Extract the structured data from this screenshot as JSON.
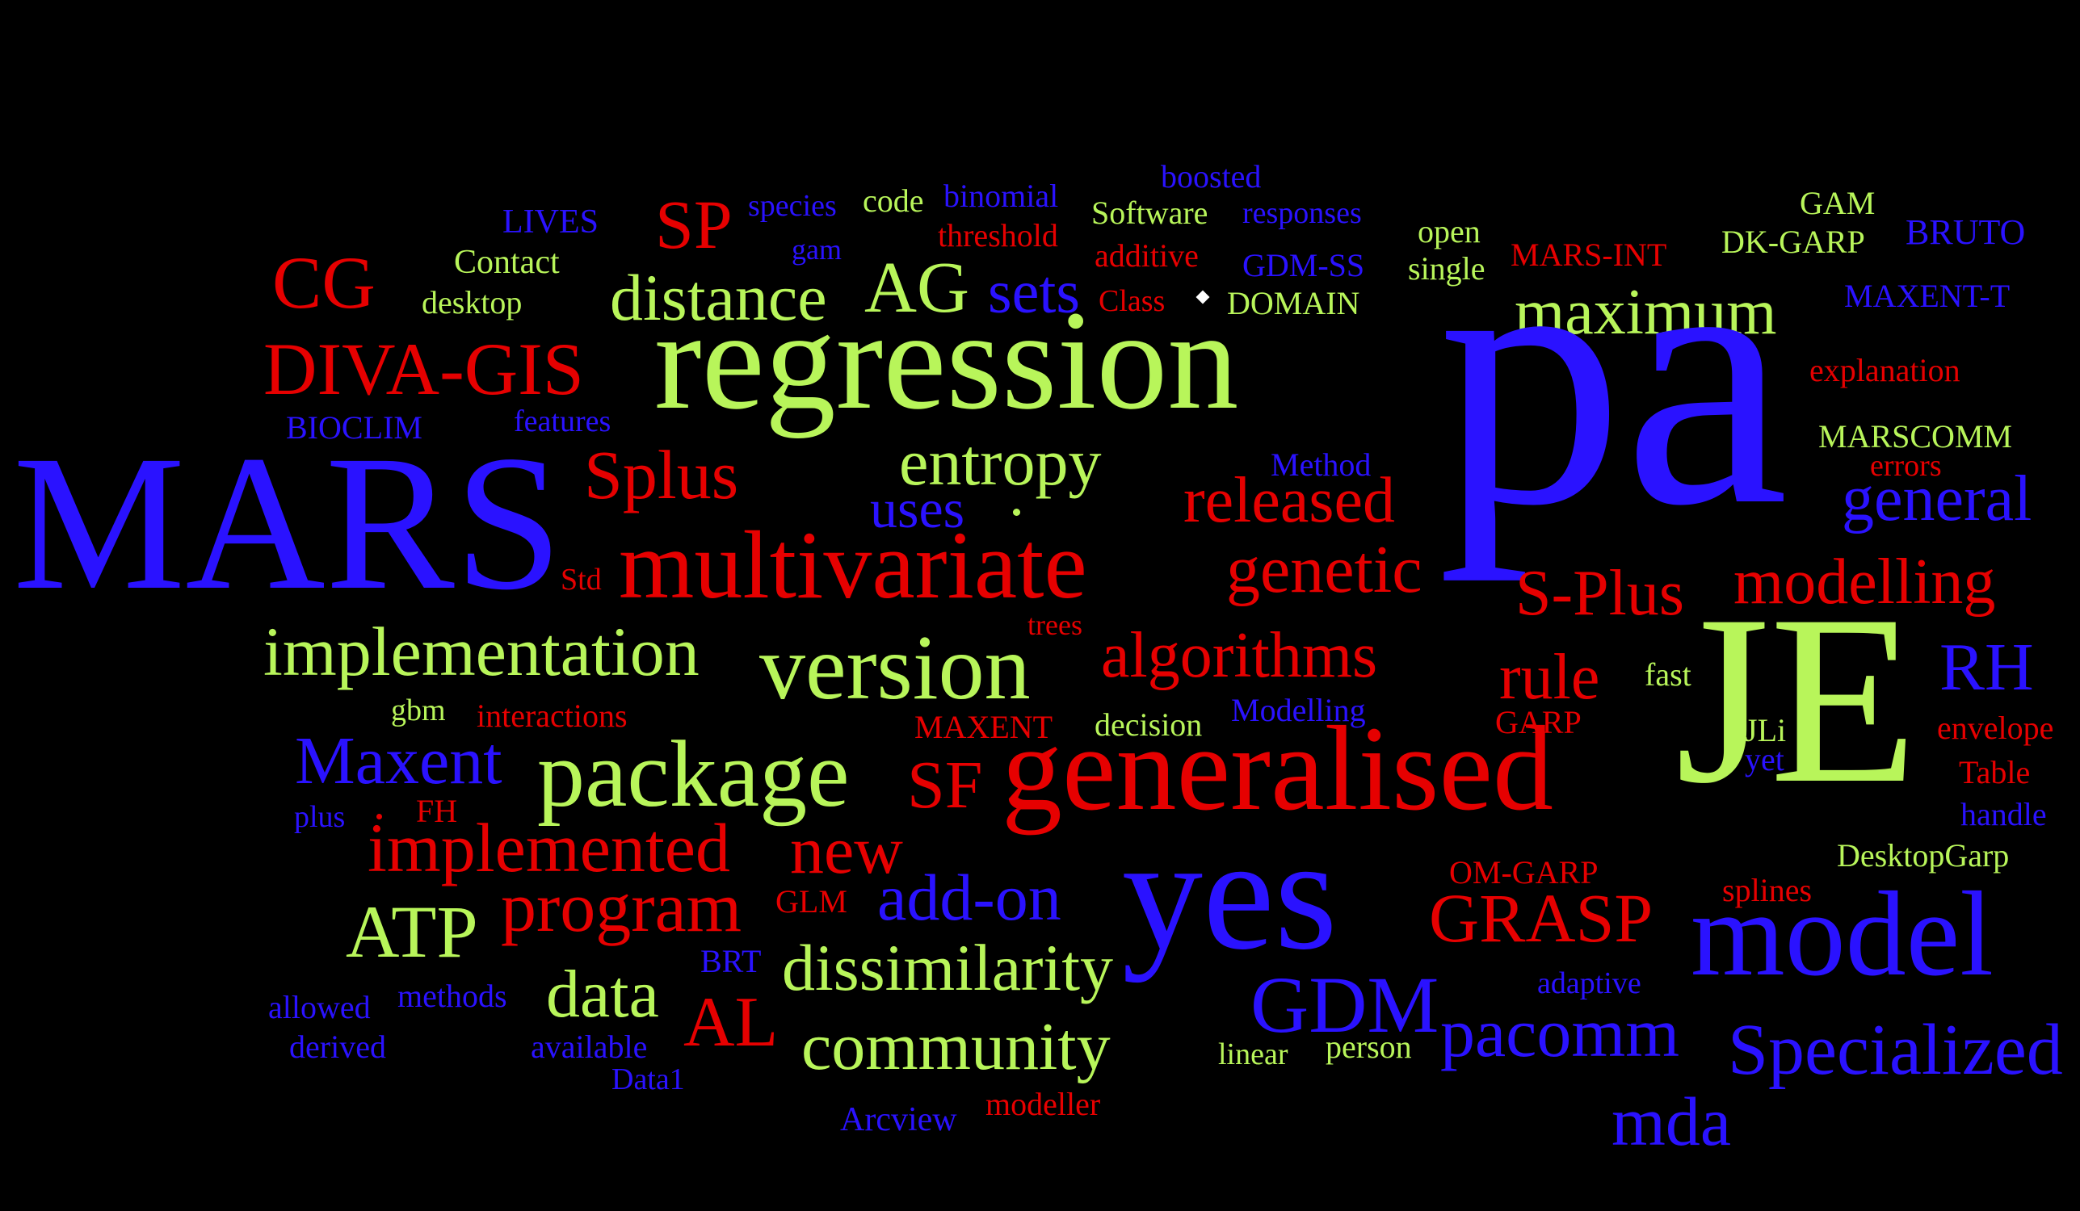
{
  "colors": {
    "red": "#e60000",
    "green": "#b8f55a",
    "blue": "#2a12ff",
    "background": "#000000"
  },
  "words": [
    {
      "text": "boosted",
      "color": "blue"
    },
    {
      "text": "species",
      "color": "blue"
    },
    {
      "text": "code",
      "color": "green"
    },
    {
      "text": "binomial",
      "color": "blue"
    },
    {
      "text": "Software",
      "color": "green"
    },
    {
      "text": "responses",
      "color": "blue"
    },
    {
      "text": "GAM",
      "color": "green"
    },
    {
      "text": "LIVES",
      "color": "blue"
    },
    {
      "text": "SP",
      "color": "red"
    },
    {
      "text": "gam",
      "color": "blue"
    },
    {
      "text": "threshold",
      "color": "red"
    },
    {
      "text": "additive",
      "color": "red"
    },
    {
      "text": "open",
      "color": "green"
    },
    {
      "text": "MARS-INT",
      "color": "red"
    },
    {
      "text": "DK-GARP",
      "color": "green"
    },
    {
      "text": "BRUTO",
      "color": "blue"
    },
    {
      "text": "CG",
      "color": "red"
    },
    {
      "text": "Contact",
      "color": "green"
    },
    {
      "text": "GDM-SS",
      "color": "blue"
    },
    {
      "text": "single",
      "color": "green"
    },
    {
      "text": "desktop",
      "color": "green"
    },
    {
      "text": "distance",
      "color": "green"
    },
    {
      "text": "AG",
      "color": "green"
    },
    {
      "text": "sets",
      "color": "blue"
    },
    {
      "text": "Class",
      "color": "red"
    },
    {
      "text": "DOMAIN",
      "color": "green"
    },
    {
      "text": "MAXENT-T",
      "color": "blue"
    },
    {
      "text": "maximum",
      "color": "green"
    },
    {
      "text": "DIVA-GIS",
      "color": "red"
    },
    {
      "text": "regression",
      "color": "green"
    },
    {
      "text": "pa",
      "color": "blue"
    },
    {
      "text": "explanation",
      "color": "red"
    },
    {
      "text": "BIOCLIM",
      "color": "blue"
    },
    {
      "text": "features",
      "color": "blue"
    },
    {
      "text": "MARSCOMM",
      "color": "green"
    },
    {
      "text": "MARS",
      "color": "blue"
    },
    {
      "text": "Method",
      "color": "blue"
    },
    {
      "text": "errors",
      "color": "red"
    },
    {
      "text": "Splus",
      "color": "red"
    },
    {
      "text": "entropy",
      "color": "green"
    },
    {
      "text": "released",
      "color": "red"
    },
    {
      "text": "general",
      "color": "blue"
    },
    {
      "text": "uses",
      "color": "blue"
    },
    {
      "text": "Std",
      "color": "red"
    },
    {
      "text": "multivariate",
      "color": "red"
    },
    {
      "text": "genetic",
      "color": "red"
    },
    {
      "text": "S-Plus",
      "color": "red"
    },
    {
      "text": "modelling",
      "color": "red"
    },
    {
      "text": "implementation",
      "color": "green"
    },
    {
      "text": "version",
      "color": "green"
    },
    {
      "text": "trees",
      "color": "red"
    },
    {
      "text": "algorithms",
      "color": "red"
    },
    {
      "text": "rule",
      "color": "red"
    },
    {
      "text": "fast",
      "color": "green"
    },
    {
      "text": "JE",
      "color": "green"
    },
    {
      "text": "RH",
      "color": "blue"
    },
    {
      "text": "gbm",
      "color": "green"
    },
    {
      "text": "interactions",
      "color": "red"
    },
    {
      "text": "MAXENT",
      "color": "red"
    },
    {
      "text": "decision",
      "color": "green"
    },
    {
      "text": "Modelling",
      "color": "blue"
    },
    {
      "text": "GARP",
      "color": "red"
    },
    {
      "text": "JLi",
      "color": "green"
    },
    {
      "text": "envelope",
      "color": "red"
    },
    {
      "text": "Maxent",
      "color": "blue"
    },
    {
      "text": "package",
      "color": "green"
    },
    {
      "text": "SF",
      "color": "red"
    },
    {
      "text": "generalised",
      "color": "red"
    },
    {
      "text": "yet",
      "color": "blue"
    },
    {
      "text": "Table",
      "color": "red"
    },
    {
      "text": "plus",
      "color": "blue"
    },
    {
      "text": "FH",
      "color": "red"
    },
    {
      "text": "handle",
      "color": "blue"
    },
    {
      "text": "implemented",
      "color": "red"
    },
    {
      "text": "new",
      "color": "red"
    },
    {
      "text": "DesktopGarp",
      "color": "green"
    },
    {
      "text": "OM-GARP",
      "color": "red"
    },
    {
      "text": "ATP",
      "color": "green"
    },
    {
      "text": "program",
      "color": "red"
    },
    {
      "text": "GLM",
      "color": "red"
    },
    {
      "text": "add-on",
      "color": "blue"
    },
    {
      "text": "yes",
      "color": "blue"
    },
    {
      "text": "splines",
      "color": "red"
    },
    {
      "text": "GRASP",
      "color": "red"
    },
    {
      "text": "model",
      "color": "blue"
    },
    {
      "text": "BRT",
      "color": "blue"
    },
    {
      "text": "dissimilarity",
      "color": "green"
    },
    {
      "text": "adaptive",
      "color": "blue"
    },
    {
      "text": "allowed",
      "color": "blue"
    },
    {
      "text": "methods",
      "color": "blue"
    },
    {
      "text": "data",
      "color": "green"
    },
    {
      "text": "AL",
      "color": "red"
    },
    {
      "text": "GDM",
      "color": "blue"
    },
    {
      "text": "derived",
      "color": "blue"
    },
    {
      "text": "available",
      "color": "blue"
    },
    {
      "text": "community",
      "color": "green"
    },
    {
      "text": "linear",
      "color": "green"
    },
    {
      "text": "person",
      "color": "green"
    },
    {
      "text": "pacomm",
      "color": "blue"
    },
    {
      "text": "Specialized",
      "color": "blue"
    },
    {
      "text": "Data1",
      "color": "blue"
    },
    {
      "text": "modeller",
      "color": "red"
    },
    {
      "text": "Arcview",
      "color": "blue"
    },
    {
      "text": "mda",
      "color": "blue"
    }
  ]
}
